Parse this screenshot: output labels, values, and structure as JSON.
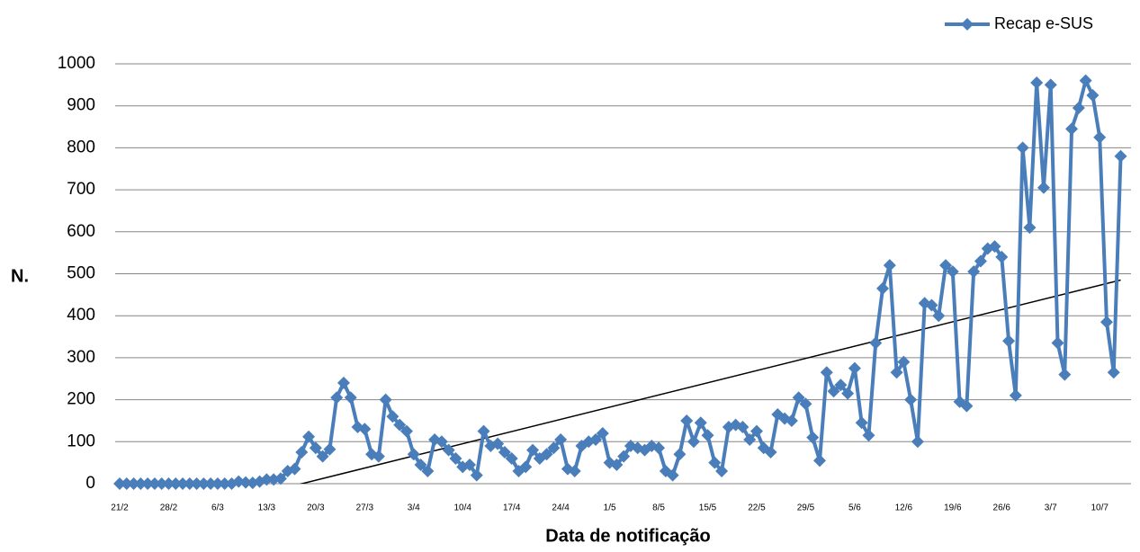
{
  "chart_data": {
    "type": "line",
    "x_label": "Data de notificação",
    "y_label": "N.",
    "categories": [
      "21/2",
      null,
      null,
      null,
      null,
      null,
      null,
      "28/2",
      null,
      null,
      null,
      null,
      null,
      null,
      "6/3",
      null,
      null,
      null,
      null,
      null,
      null,
      "13/3",
      null,
      null,
      null,
      null,
      null,
      null,
      "20/3",
      null,
      null,
      null,
      null,
      null,
      null,
      "27/3",
      null,
      null,
      null,
      null,
      null,
      null,
      "3/4",
      null,
      null,
      null,
      null,
      null,
      null,
      "10/4",
      null,
      null,
      null,
      null,
      null,
      null,
      "17/4",
      null,
      null,
      null,
      null,
      null,
      null,
      "24/4",
      null,
      null,
      null,
      null,
      null,
      null,
      "1/5",
      null,
      null,
      null,
      null,
      null,
      null,
      "8/5",
      null,
      null,
      null,
      null,
      null,
      null,
      "15/5",
      null,
      null,
      null,
      null,
      null,
      null,
      "22/5",
      null,
      null,
      null,
      null,
      null,
      null,
      "29/5",
      null,
      null,
      null,
      null,
      null,
      null,
      "5/6",
      null,
      null,
      null,
      null,
      null,
      null,
      "12/6",
      null,
      null,
      null,
      null,
      null,
      null,
      "19/6",
      null,
      null,
      null,
      null,
      null,
      null,
      "26/6",
      null,
      null,
      null,
      null,
      null,
      null,
      "3/7",
      null,
      null,
      null,
      null,
      null,
      null,
      "10/7",
      null,
      null,
      null
    ],
    "series": [
      {
        "name": "Recap e-SUS",
        "color": "#4a7ebb",
        "values": [
          0,
          0,
          0,
          0,
          0,
          0,
          0,
          0,
          0,
          0,
          0,
          0,
          0,
          0,
          0,
          0,
          0,
          5,
          3,
          2,
          5,
          10,
          10,
          12,
          30,
          35,
          75,
          112,
          85,
          65,
          82,
          205,
          240,
          205,
          135,
          130,
          70,
          65,
          200,
          160,
          140,
          125,
          70,
          45,
          30,
          105,
          100,
          80,
          60,
          40,
          45,
          20,
          125,
          90,
          95,
          75,
          60,
          30,
          40,
          80,
          60,
          70,
          85,
          105,
          35,
          30,
          90,
          100,
          105,
          120,
          50,
          45,
          65,
          90,
          85,
          80,
          90,
          85,
          30,
          20,
          70,
          150,
          100,
          145,
          115,
          50,
          30,
          135,
          140,
          135,
          105,
          125,
          85,
          75,
          165,
          155,
          150,
          205,
          190,
          110,
          55,
          265,
          220,
          235,
          215,
          275,
          145,
          115,
          335,
          465,
          520,
          265,
          290,
          200,
          100,
          430,
          425,
          400,
          520,
          505,
          195,
          185,
          505,
          530,
          560,
          565,
          540,
          340,
          210,
          800,
          610,
          955,
          705,
          950,
          335,
          260,
          845,
          895,
          960,
          925,
          825,
          385,
          265,
          780
        ]
      }
    ],
    "trendline": {
      "color": "#000000",
      "values": [
        -108,
        485
      ]
    },
    "ylim": [
      0,
      1000
    ],
    "yticks": [
      0,
      100,
      200,
      300,
      400,
      500,
      600,
      700,
      800,
      900,
      1000
    ],
    "grid": true,
    "legend": "top-right"
  }
}
